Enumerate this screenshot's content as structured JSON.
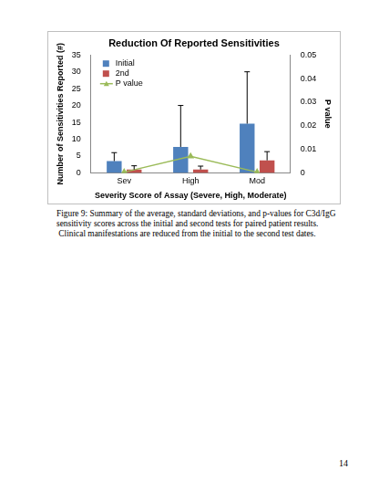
{
  "chart_data": {
    "type": "bar",
    "title": "Reduction Of Reported Sensitivities",
    "x_label": "Severity Score of Assay (Severe, High, Moderate)",
    "y_label": "Number of Sensitivities Reported (#)",
    "y2_label": "P value",
    "categories": [
      "Sev",
      "High",
      "Mod"
    ],
    "series": [
      {
        "name": "Initial",
        "color": "#4f81bd",
        "values": [
          3.5,
          7.7,
          14.6
        ],
        "errors": [
          2.5,
          12.3,
          15.4
        ]
      },
      {
        "name": "2nd",
        "color": "#c0504d",
        "values": [
          1.0,
          1.0,
          3.7
        ],
        "errors": [
          1.1,
          1.0,
          2.6
        ]
      },
      {
        "name": "P value",
        "color": "#9bbb59",
        "type": "line",
        "marker": "triangle",
        "axis": "y2",
        "values": [
          0.0003,
          0.007,
          0.0003
        ]
      }
    ],
    "ylim": [
      0,
      35
    ],
    "yticks": [
      0,
      5,
      10,
      15,
      20,
      25,
      30,
      35
    ],
    "y2lim": [
      0,
      0.05
    ],
    "y2ticks": [
      0,
      0.01,
      0.02,
      0.03,
      0.04,
      0.05
    ],
    "grid": false,
    "legend": "upper left"
  },
  "caption": [
    "Figure 9: Summary of the average, standard deviations, and p-values for C3d/IgG",
    "sensitivity scores across the initial and second tests for paired patient results.",
    " Clinical manifestations are reduced from the initial to the second test dates."
  ],
  "page_number": "14"
}
